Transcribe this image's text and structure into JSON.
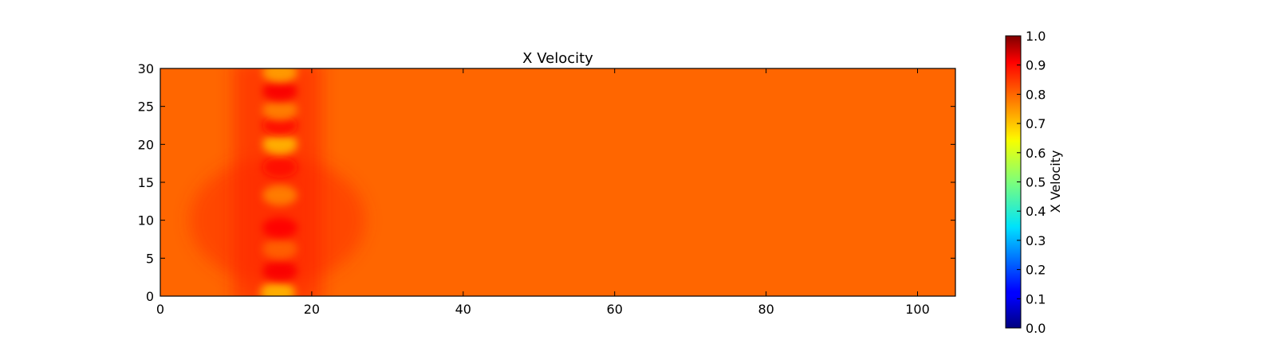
{
  "chart_data": {
    "type": "heatmap",
    "title": "X Velocity",
    "xlabel": "",
    "ylabel": "",
    "xlim": [
      0,
      105
    ],
    "ylim": [
      0,
      30
    ],
    "x_ticks": [
      0,
      20,
      40,
      60,
      80,
      100
    ],
    "y_ticks": [
      0,
      5,
      10,
      15,
      20,
      25,
      30
    ],
    "grid": false,
    "colormap": "jet",
    "background_value": 0.8,
    "colorbar": {
      "label": "X Velocity",
      "range": [
        0.0,
        1.0
      ],
      "ticks": [
        "0.0",
        "0.1",
        "0.2",
        "0.3",
        "0.4",
        "0.5",
        "0.6",
        "0.7",
        "0.8",
        "0.9",
        "1.0"
      ],
      "placement": "right"
    },
    "features": [
      {
        "x": 15.5,
        "y": 0.5,
        "value": 0.7
      },
      {
        "x": 15.8,
        "y": 3.3,
        "value": 0.88
      },
      {
        "x": 15.8,
        "y": 6.2,
        "value": 0.78
      },
      {
        "x": 15.8,
        "y": 9.0,
        "value": 0.87
      },
      {
        "x": 15.8,
        "y": 13.3,
        "value": 0.75
      },
      {
        "x": 15.8,
        "y": 17.0,
        "value": 0.86
      },
      {
        "x": 15.8,
        "y": 20.0,
        "value": 0.7
      },
      {
        "x": 15.8,
        "y": 22.5,
        "value": 0.86
      },
      {
        "x": 15.8,
        "y": 24.5,
        "value": 0.75
      },
      {
        "x": 15.8,
        "y": 27.0,
        "value": 0.88
      },
      {
        "x": 15.8,
        "y": 29.5,
        "value": 0.72
      }
    ]
  }
}
